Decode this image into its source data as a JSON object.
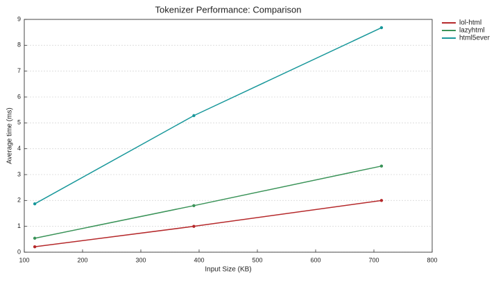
{
  "chart_data": {
    "type": "line",
    "title": "Tokenizer Performance: Comparison",
    "x_label": "Input Size (KB)",
    "y_label": "Average time (ms)",
    "x": [
      118,
      391,
      713
    ],
    "series": [
      {
        "name": "lol-html",
        "color": "#b5282a",
        "values": [
          0.21,
          1.0,
          2.0
        ]
      },
      {
        "name": "lazyhtml",
        "color": "#3a9358",
        "values": [
          0.54,
          1.8,
          3.33
        ]
      },
      {
        "name": "html5ever",
        "color": "#17979a",
        "values": [
          1.87,
          5.28,
          8.68
        ]
      }
    ],
    "xlim": [
      100,
      800
    ],
    "xticks": [
      100,
      200,
      300,
      400,
      500,
      600,
      700,
      800
    ],
    "ylim": [
      0,
      9
    ],
    "yticks": [
      0,
      1,
      2,
      3,
      4,
      5,
      6,
      7,
      8,
      9
    ],
    "grid": true,
    "legend": "right"
  }
}
